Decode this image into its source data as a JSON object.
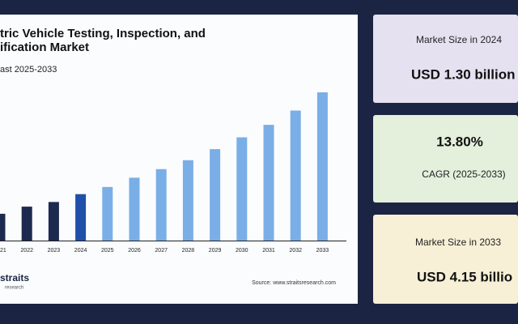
{
  "chart_data": {
    "type": "bar",
    "title_lines": [
      "tric Vehicle Testing, Inspection, and",
      "ification Market"
    ],
    "subtitle": "ast 2025-2033",
    "categories": [
      "21",
      "2022",
      "2023",
      "2024",
      "2025",
      "2026",
      "2027",
      "2028",
      "2029",
      "2030",
      "2031",
      "2032",
      "2033"
    ],
    "values": [
      0.75,
      0.95,
      1.08,
      1.3,
      1.5,
      1.76,
      2.0,
      2.25,
      2.56,
      2.89,
      3.24,
      3.64,
      4.15
    ],
    "colors": [
      "#1b2a4e",
      "#1b2a4e",
      "#1b2a4e",
      "#1f4fa8",
      "#7aaee6",
      "#7aaee6",
      "#7aaee6",
      "#7aaee6",
      "#7aaee6",
      "#7aaee6",
      "#7aaee6",
      "#7aaee6",
      "#7aaee6"
    ],
    "source": "Source: www.straitsresearch.com",
    "logo": [
      "straits",
      "research"
    ]
  },
  "stats": [
    {
      "label": "Market Size in 2024",
      "value": "USD 1.30 billion"
    },
    {
      "value": "13.80%",
      "label": "CAGR (2025-2033)"
    },
    {
      "label": "Market Size in 2033",
      "value": "USD 4.15 billio"
    }
  ]
}
